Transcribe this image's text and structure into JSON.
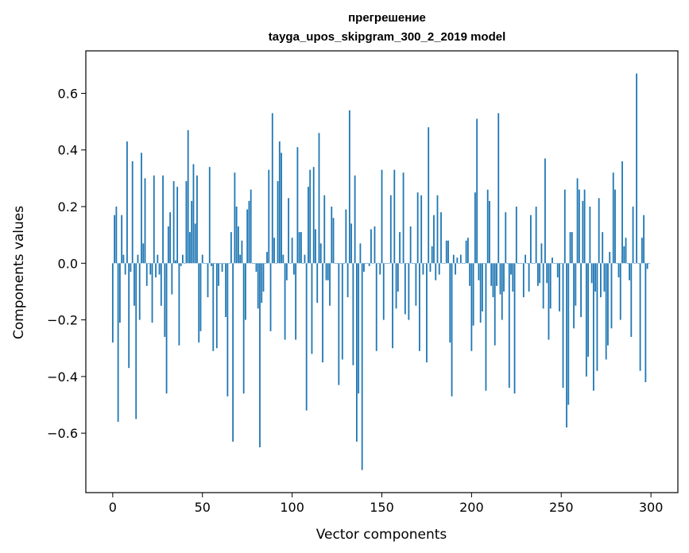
{
  "chart_data": {
    "type": "bar",
    "title": "прегрешение",
    "subtitle": "tayga_upos_skipgram_300_2_2019 model",
    "xlabel": "Vector components",
    "ylabel": "Components values",
    "xlim": [
      -15,
      315
    ],
    "ylim": [
      -0.81,
      0.75
    ],
    "xticks": [
      0,
      50,
      100,
      150,
      200,
      250,
      300
    ],
    "xtick_labels": [
      "0",
      "50",
      "100",
      "150",
      "200",
      "250",
      "300"
    ],
    "yticks": [
      -0.6,
      -0.4,
      -0.2,
      0.0,
      0.2,
      0.4,
      0.6
    ],
    "ytick_labels": [
      "−0.6",
      "−0.4",
      "−0.2",
      "0.0",
      "0.2",
      "0.4",
      "0.6"
    ],
    "grid": false,
    "bar_color": "#1f77b4",
    "values": [
      -0.28,
      0.17,
      0.2,
      -0.56,
      -0.21,
      0.17,
      0.03,
      -0.04,
      0.43,
      -0.37,
      -0.03,
      0.36,
      -0.15,
      -0.55,
      0.03,
      -0.2,
      0.39,
      0.07,
      0.3,
      -0.08,
      0.0,
      -0.04,
      -0.21,
      0.31,
      -0.05,
      0.03,
      -0.04,
      -0.15,
      0.31,
      -0.26,
      -0.46,
      0.13,
      0.18,
      -0.11,
      0.29,
      0.01,
      0.27,
      -0.29,
      -0.01,
      0.03,
      0.0,
      0.29,
      0.47,
      0.11,
      0.22,
      0.35,
      0.14,
      0.31,
      -0.28,
      -0.24,
      0.03,
      0.0,
      0.0,
      -0.12,
      0.34,
      -0.01,
      -0.31,
      0.0,
      -0.3,
      -0.08,
      0.0,
      -0.03,
      0.0,
      -0.19,
      -0.47,
      0.0,
      0.11,
      -0.63,
      0.32,
      0.2,
      0.13,
      0.03,
      0.08,
      -0.46,
      -0.2,
      0.19,
      0.22,
      0.26,
      0.0,
      0.0,
      -0.03,
      -0.16,
      -0.65,
      -0.14,
      -0.1,
      0.0,
      0.04,
      0.33,
      -0.24,
      0.53,
      0.09,
      0.0,
      0.29,
      0.43,
      0.39,
      0.03,
      -0.27,
      -0.06,
      0.23,
      0.0,
      0.09,
      -0.04,
      -0.27,
      0.41,
      0.11,
      0.11,
      0.0,
      0.03,
      -0.52,
      0.27,
      0.33,
      -0.32,
      0.34,
      0.12,
      -0.14,
      0.46,
      0.07,
      -0.35,
      0.24,
      -0.06,
      -0.06,
      -0.15,
      0.2,
      0.16,
      0.0,
      0.0,
      -0.43,
      0.0,
      -0.34,
      0.0,
      0.19,
      -0.12,
      0.54,
      0.14,
      -0.36,
      0.31,
      -0.63,
      -0.46,
      0.07,
      -0.73,
      -0.03,
      0.0,
      0.0,
      -0.01,
      0.12,
      0.0,
      0.13,
      -0.31,
      0.0,
      -0.04,
      0.33,
      -0.2,
      0.0,
      0.0,
      0.0,
      0.24,
      -0.3,
      0.33,
      -0.16,
      -0.1,
      0.11,
      0.0,
      0.32,
      -0.18,
      0.0,
      -0.2,
      0.13,
      0.0,
      0.0,
      -0.15,
      0.25,
      -0.31,
      0.24,
      -0.04,
      0.0,
      -0.35,
      0.48,
      -0.03,
      0.06,
      0.17,
      -0.06,
      0.24,
      -0.04,
      0.18,
      0.0,
      0.0,
      0.08,
      0.08,
      -0.28,
      -0.47,
      0.03,
      -0.04,
      0.02,
      0.0,
      0.03,
      0.0,
      0.0,
      0.08,
      0.09,
      -0.08,
      -0.31,
      -0.22,
      0.25,
      0.51,
      -0.06,
      -0.21,
      -0.17,
      0.0,
      -0.45,
      0.26,
      0.22,
      -0.08,
      -0.12,
      -0.29,
      -0.08,
      0.53,
      -0.11,
      -0.2,
      -0.1,
      0.18,
      0.0,
      -0.44,
      -0.04,
      -0.1,
      -0.46,
      0.2,
      0.0,
      0.0,
      0.0,
      -0.12,
      0.03,
      0.0,
      -0.1,
      0.17,
      0.0,
      0.0,
      0.2,
      -0.08,
      -0.07,
      0.07,
      -0.16,
      0.37,
      -0.07,
      -0.27,
      -0.16,
      0.02,
      0.0,
      0.0,
      -0.05,
      -0.17,
      0.0,
      -0.44,
      0.26,
      -0.58,
      -0.5,
      0.11,
      0.11,
      -0.23,
      -0.15,
      0.3,
      0.26,
      -0.19,
      0.22,
      0.26,
      -0.4,
      -0.33,
      0.2,
      -0.07,
      -0.45,
      -0.1,
      -0.38,
      0.23,
      -0.12,
      0.11,
      -0.1,
      -0.34,
      -0.29,
      0.04,
      -0.23,
      0.32,
      0.26,
      0.0,
      -0.05,
      -0.2,
      0.36,
      0.06,
      0.09,
      0.0,
      -0.06,
      -0.26,
      0.2,
      0.0,
      0.67,
      0.0,
      -0.38,
      0.09,
      0.17,
      -0.42,
      -0.02,
      0.0
    ]
  }
}
